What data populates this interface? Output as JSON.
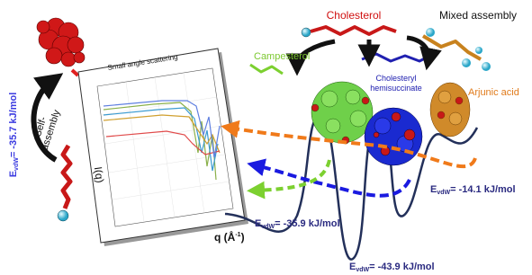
{
  "labels": {
    "cholesterol": "Cholesterol",
    "mixed_assembly": "Mixed assembly",
    "campesterol": "Campesterol",
    "hemisuccinate": [
      "Cholesteryl",
      "hemisuccinate"
    ],
    "arjunic_acid": "Arjunic acid",
    "self_assembly": [
      "Self-",
      "assembly"
    ],
    "saxs_title": "Small angle scattering",
    "y_axis": "I(q)",
    "x_axis": {
      "text": "q (Å",
      "superscript": "-1",
      "close": ")"
    }
  },
  "energies": [
    {
      "symbol": "E",
      "subscript": "vdW",
      "value_text": "= -35.7 kJ/mol"
    },
    {
      "symbol": "E",
      "subscript": "vdW",
      "value_text": "= -14.1 kJ/mol"
    },
    {
      "symbol": "E",
      "subscript": "vdW",
      "value_text": "= -35.9 kJ/mol"
    },
    {
      "symbol": "E",
      "subscript": "vdW",
      "value_text": "= -43.9 kJ/mol"
    }
  ]
}
